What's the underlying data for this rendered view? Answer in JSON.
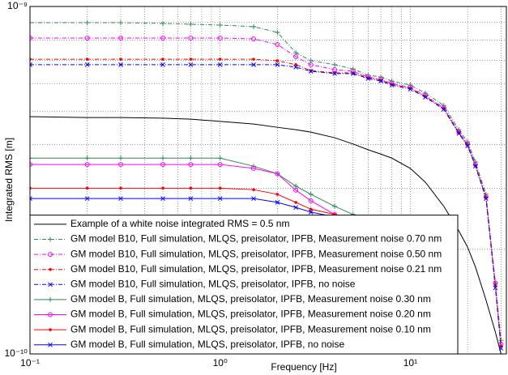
{
  "chart_data": {
    "type": "line",
    "xlabel": "Frequency [Hz]",
    "ylabel": "Integrated RMS [m]",
    "log_x": true,
    "log_y": true,
    "grid": true,
    "legend_corner": "lower left",
    "xlim": [
      0.1,
      32
    ],
    "ylim": [
      1e-10,
      1e-09
    ],
    "xticks": [
      {
        "value": 0.1,
        "label": "10⁻¹"
      },
      {
        "value": 1,
        "label": "10⁰"
      },
      {
        "value": 10,
        "label": "10¹"
      }
    ],
    "yticks": [
      {
        "value": 1e-10,
        "label": "10⁻¹⁰"
      },
      {
        "value": 1e-09,
        "label": "10⁻⁹"
      }
    ],
    "xminorticks": [
      0.2,
      0.3,
      0.4,
      0.5,
      0.6,
      0.7,
      0.8,
      0.9,
      2,
      3,
      4,
      5,
      6,
      7,
      8,
      9,
      20,
      30
    ],
    "yminorticks": [
      2e-10,
      3e-10,
      4e-10,
      5e-10,
      6e-10,
      7e-10,
      8e-10,
      9e-10
    ],
    "x": [
      0.1,
      0.2,
      0.3,
      0.5,
      0.7,
      1,
      1.5,
      2,
      2.5,
      3,
      4,
      5,
      6,
      7,
      8,
      10,
      12,
      15,
      18,
      20,
      22,
      25,
      28,
      30
    ],
    "series": [
      {
        "name": "Example of a white noise integrated RMS = 0.5 nm",
        "color": "#000000",
        "marker": "none",
        "line_style": "solid",
        "values": [
          4.82e-10,
          4.79e-10,
          4.79e-10,
          4.77e-10,
          4.74e-10,
          4.67e-10,
          4.59e-10,
          4.49e-10,
          4.42e-10,
          4.35e-10,
          4.19e-10,
          4.02e-10,
          3.87e-10,
          3.76e-10,
          3.66e-10,
          3.42e-10,
          3.12e-10,
          2.66e-10,
          2.26e-10,
          2.03e-10,
          1.78e-10,
          1.43e-10,
          1.156e-10,
          1e-10
        ]
      },
      {
        "name": "GM model B10, Full simulation, MLQS, preisolator, IPFB, Measurement noise 0.70 nm",
        "color": "#2e8b57",
        "marker": "+",
        "line_style": "dashed",
        "values": [
          8.98e-10,
          8.98e-10,
          8.98e-10,
          8.94e-10,
          8.89e-10,
          8.84e-10,
          8.75e-10,
          8.42e-10,
          7.36e-10,
          6.98e-10,
          6.8e-10,
          6.61e-10,
          6.34e-10,
          6.27e-10,
          6.1e-10,
          5.94e-10,
          5.63e-10,
          5.19e-10,
          4.42e-10,
          4.08e-10,
          3.57e-10,
          2.88e-10,
          1.6e-10,
          1.095e-10
        ]
      },
      {
        "name": "GM model B10, Full simulation, MLQS, preisolator, IPFB, Measurement noise 0.50 nm",
        "color": "#ff00ff",
        "marker": "o",
        "line_style": "dashed",
        "values": [
          8.11e-10,
          8.11e-10,
          8.11e-10,
          8.11e-10,
          8.11e-10,
          8.11e-10,
          8.07e-10,
          7.77e-10,
          7.17e-10,
          6.8e-10,
          6.58e-10,
          6.51e-10,
          6.27e-10,
          6.17e-10,
          6e-10,
          5.85e-10,
          5.54e-10,
          5.11e-10,
          4.35e-10,
          4.02e-10,
          3.51e-10,
          2.83e-10,
          1.6e-10,
          1.067e-10
        ]
      },
      {
        "name": "GM model B10, Full simulation, MLQS, preisolator, IPFB, Measurement noise 0.21 nm",
        "color": "#ff0000",
        "marker": ".",
        "line_style": "dashed",
        "values": [
          7.05e-10,
          7.05e-10,
          7.05e-10,
          7.05e-10,
          7.05e-10,
          7.05e-10,
          7.05e-10,
          6.98e-10,
          6.8e-10,
          6.54e-10,
          6.44e-10,
          6.44e-10,
          6.24e-10,
          6.14e-10,
          5.97e-10,
          5.82e-10,
          5.51e-10,
          5.09e-10,
          4.33e-10,
          3.99e-10,
          3.49e-10,
          2.82e-10,
          1.58e-10,
          1.055e-10
        ]
      },
      {
        "name": "GM model B10, Full simulation, MLQS, preisolator, IPFB, no noise",
        "color": "#0000ff",
        "marker": "x",
        "line_style": "dashed",
        "values": [
          6.8e-10,
          6.8e-10,
          6.8e-10,
          6.8e-10,
          6.8e-10,
          6.8e-10,
          6.8e-10,
          6.8e-10,
          6.69e-10,
          6.51e-10,
          6.41e-10,
          6.41e-10,
          6.2e-10,
          6.1e-10,
          5.94e-10,
          5.78e-10,
          5.48e-10,
          5.06e-10,
          4.31e-10,
          3.97e-10,
          3.47e-10,
          2.8e-10,
          1.55e-10,
          1.038e-10
        ]
      },
      {
        "name": "GM model B, Full simulation, MLQS, preisolator, IPFB, Measurement noise 0.30 nm",
        "color": "#2e8b57",
        "marker": "+",
        "line_style": "solid",
        "values": [
          3.66e-10,
          3.66e-10,
          3.66e-10,
          3.66e-10,
          3.66e-10,
          3.66e-10,
          3.47e-10,
          3.3e-10,
          3.04e-10,
          2.88e-10,
          2.66e-10,
          2.52e-10,
          2.45e-10,
          2.39e-10,
          2.2e-10,
          1.78e-10,
          1.22e-10,
          null,
          null,
          null,
          null,
          null,
          null,
          null
        ]
      },
      {
        "name": "GM model B, Full simulation, MLQS, preisolator, IPFB, Measurement noise 0.20 nm",
        "color": "#ff00ff",
        "marker": "o",
        "line_style": "solid",
        "values": [
          3.51e-10,
          3.51e-10,
          3.51e-10,
          3.51e-10,
          3.51e-10,
          3.51e-10,
          3.42e-10,
          3.3e-10,
          2.96e-10,
          2.76e-10,
          2.52e-10,
          2.45e-10,
          2.39e-10,
          2.32e-10,
          2.14e-10,
          1.76e-10,
          1.19e-10,
          null,
          null,
          null,
          null,
          null,
          null,
          null
        ]
      },
      {
        "name": "GM model B, Full simulation, MLQS, preisolator, IPFB, Measurement noise 0.10 nm",
        "color": "#ff0000",
        "marker": ".",
        "line_style": "solid",
        "values": [
          3e-10,
          3e-10,
          3e-10,
          3e-10,
          3e-10,
          3e-10,
          2.97e-10,
          2.88e-10,
          2.73e-10,
          2.61e-10,
          2.52e-10,
          2.45e-10,
          2.39e-10,
          2.32e-10,
          2.11e-10,
          1.73e-10,
          1.156e-10,
          null,
          null,
          null,
          null,
          null,
          null,
          null
        ]
      },
      {
        "name": "GM model B, Full simulation, MLQS, preisolator, IPFB, no noise",
        "color": "#0000ff",
        "marker": "x",
        "line_style": "solid",
        "values": [
          2.8e-10,
          2.8e-10,
          2.8e-10,
          2.8e-10,
          2.8e-10,
          2.8e-10,
          2.8e-10,
          2.73e-10,
          2.64e-10,
          2.56e-10,
          2.48e-10,
          2.42e-10,
          2.36e-10,
          2.3e-10,
          2.09e-10,
          1.7e-10,
          1.125e-10,
          null,
          null,
          null,
          null,
          null,
          null,
          null
        ]
      }
    ]
  }
}
